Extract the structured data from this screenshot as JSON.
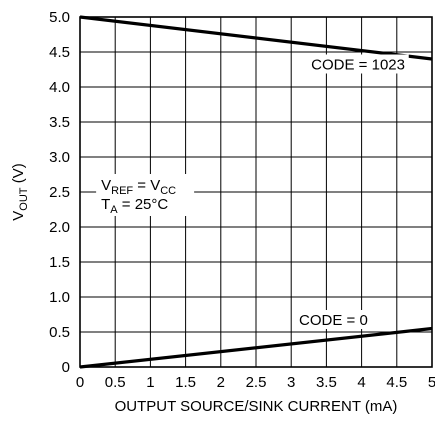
{
  "chart_data": {
    "type": "line",
    "title": "",
    "xlabel": "OUTPUT SOURCE/SINK CURRENT (mA)",
    "ylabel": {
      "base": "V",
      "sub": "OUT",
      "rest": " (V)"
    },
    "xlim": [
      0,
      5
    ],
    "ylim": [
      0,
      5
    ],
    "x_ticks": [
      0,
      0.5,
      1,
      1.5,
      2,
      2.5,
      3,
      3.5,
      4,
      4.5,
      5
    ],
    "y_ticks": [
      0,
      0.5,
      1.0,
      1.5,
      2.0,
      2.5,
      3.0,
      3.5,
      4.0,
      4.5,
      5.0
    ],
    "x_tick_labels": [
      "0",
      "0.5",
      "1",
      "1.5",
      "2",
      "2.5",
      "3",
      "3.5",
      "4",
      "4.5",
      "5"
    ],
    "y_tick_labels": [
      "0",
      "0.5",
      "1.0",
      "1.5",
      "2.0",
      "2.5",
      "3.0",
      "3.5",
      "4.0",
      "4.5",
      "5.0"
    ],
    "grid": true,
    "series": [
      {
        "name": "CODE = 1023",
        "x": [
          0,
          5
        ],
        "y": [
          5.0,
          4.4
        ],
        "label_at": {
          "x": 3.95,
          "y": 4.25
        }
      },
      {
        "name": "CODE = 0",
        "x": [
          0,
          5
        ],
        "y": [
          0.0,
          0.55
        ],
        "label_at": {
          "x": 3.6,
          "y": 0.6
        }
      }
    ],
    "conditions": {
      "line1": {
        "base": "V",
        "sub": "REF",
        "mid": " = V",
        "sub2": "CC"
      },
      "line2": {
        "base": "T",
        "sub": "A",
        "rest": " = 25°C"
      },
      "anchor": {
        "x": 0.3,
        "y": 2.5
      }
    },
    "colors": {
      "line": "#000000",
      "grid": "#000000",
      "background": "#ffffff"
    }
  }
}
